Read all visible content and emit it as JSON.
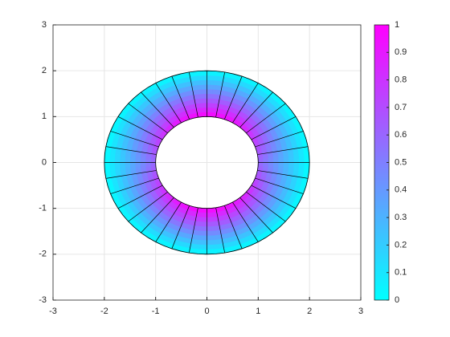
{
  "chart_data": {
    "type": "annulus-mesh",
    "inner_radius": 1,
    "outer_radius": 2,
    "xlim": [
      -3,
      3
    ],
    "ylim": [
      -3,
      3
    ],
    "xticks": [
      -3,
      -2,
      -1,
      0,
      1,
      2,
      3
    ],
    "yticks": [
      -3,
      -2,
      -1,
      0,
      1,
      2,
      3
    ],
    "grid": true,
    "colormap": [
      "#00ffff",
      "#ff00ff"
    ],
    "clim": [
      0,
      1
    ],
    "cticks": [
      0,
      0.1,
      0.2,
      0.3,
      0.4,
      0.5,
      0.6,
      0.7,
      0.8,
      0.9,
      1
    ]
  }
}
